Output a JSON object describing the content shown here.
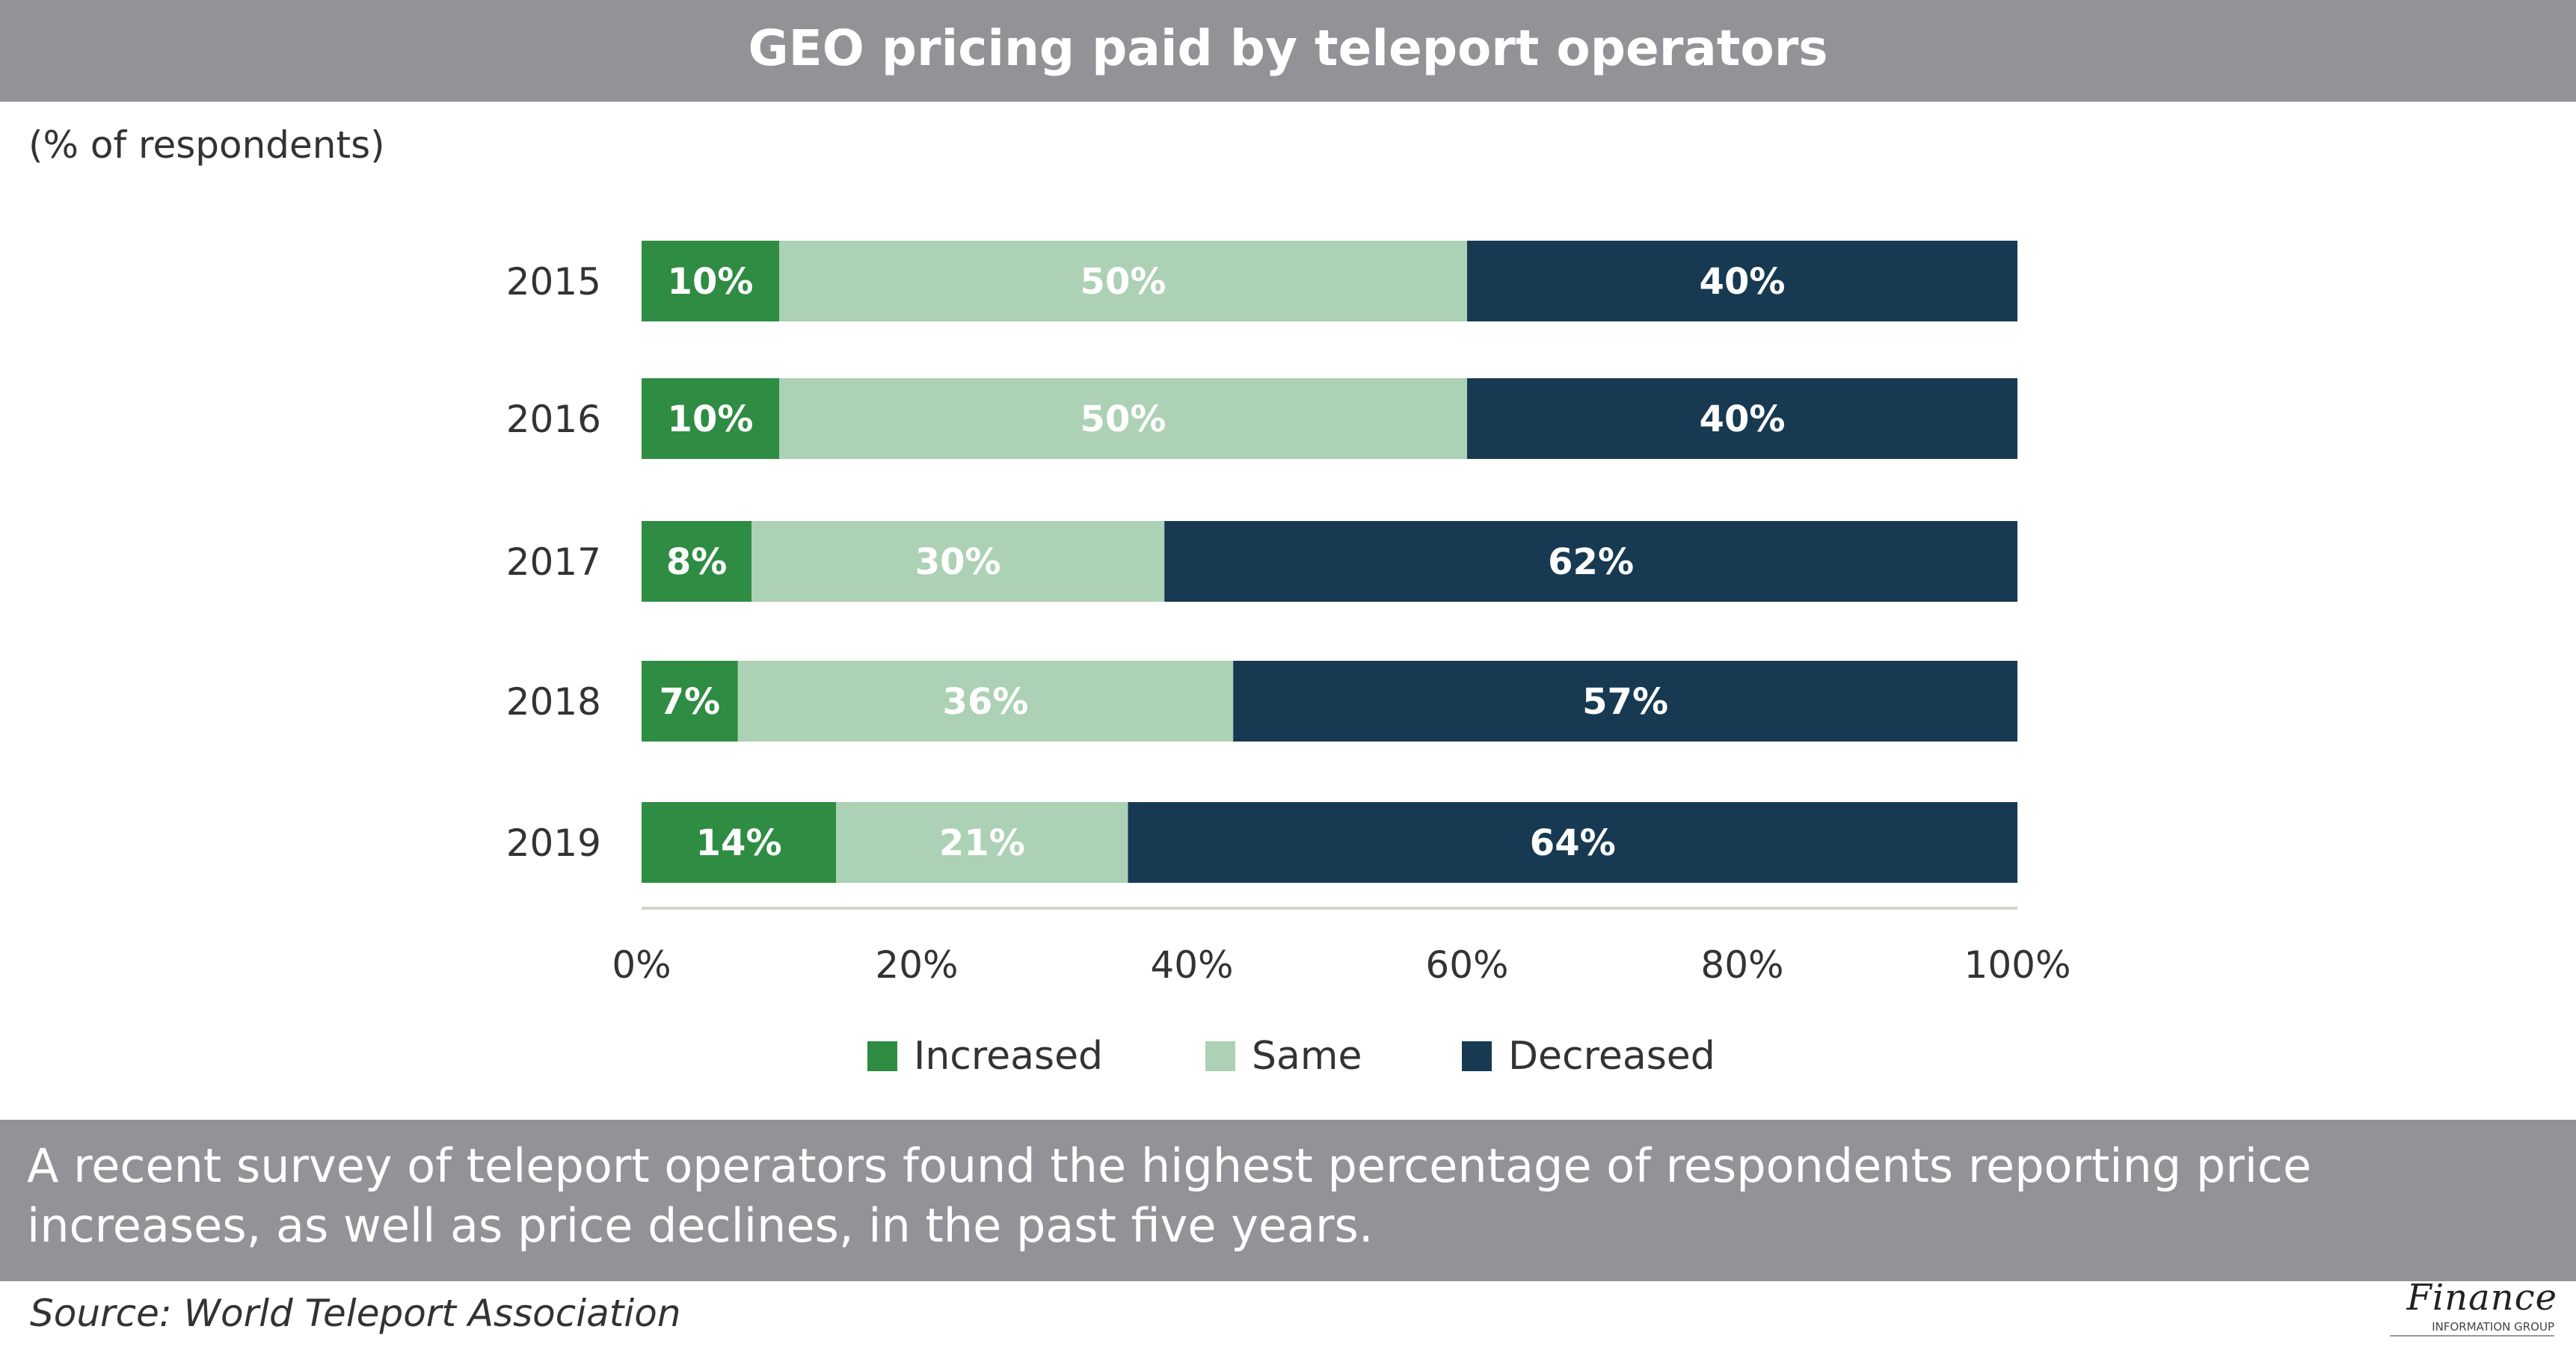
{
  "header": {
    "title": "GEO pricing paid by teleport operators"
  },
  "subtitle": "(% of respondents)",
  "caption": "A recent survey of teleport operators found the highest percentage of respondents reporting price increases, as well as price declines, in the past five years.",
  "source": "Source: World Teleport Association",
  "logo": {
    "main": "Finance",
    "sub": "INFORMATION GROUP"
  },
  "chart_data": {
    "type": "bar",
    "orientation": "horizontal",
    "stacked": true,
    "categories": [
      "2015",
      "2016",
      "2017",
      "2018",
      "2019"
    ],
    "series": [
      {
        "name": "Increased",
        "color": "#2f8c43",
        "values": [
          10,
          10,
          8,
          7,
          14
        ],
        "labels": [
          "10%",
          "10%",
          "8%",
          "7%",
          "14%"
        ]
      },
      {
        "name": "Same",
        "color": "#acd1b4",
        "values": [
          50,
          50,
          30,
          36,
          21
        ],
        "labels": [
          "50%",
          "50%",
          "30%",
          "36%",
          "21%"
        ]
      },
      {
        "name": "Decreased",
        "color": "#173a52",
        "values": [
          40,
          40,
          62,
          57,
          64
        ],
        "labels": [
          "40%",
          "40%",
          "62%",
          "57%",
          "64%"
        ]
      }
    ],
    "xlim": [
      0,
      100
    ],
    "xticks": [
      "0%",
      "20%",
      "40%",
      "60%",
      "80%",
      "100%"
    ],
    "grid": false,
    "legend": "bottom"
  }
}
